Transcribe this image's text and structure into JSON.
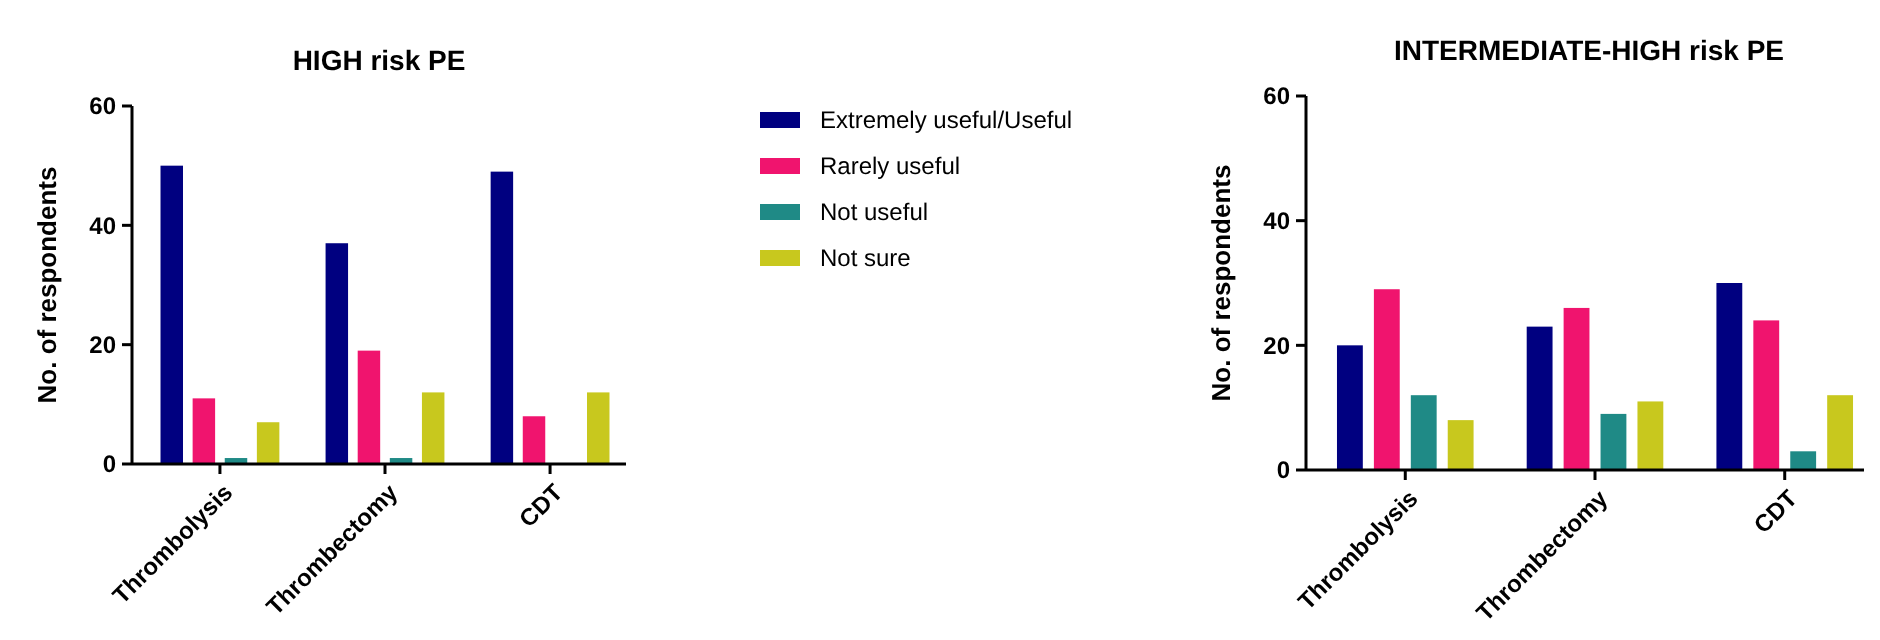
{
  "chart_data": [
    {
      "type": "bar",
      "title": "HIGH risk PE",
      "ylabel": "No. of respondents",
      "categories": [
        "Thrombolysis",
        "Thrombectomy",
        "CDT"
      ],
      "ylim": [
        0,
        60
      ],
      "yticks": [
        0,
        20,
        40,
        60
      ],
      "grid": false,
      "legend": "right",
      "series": [
        {
          "name": "Extremely useful/Useful",
          "color": "#000080",
          "values": [
            50,
            37,
            49
          ]
        },
        {
          "name": "Rarely useful",
          "color": "#f0146e",
          "values": [
            11,
            19,
            8
          ]
        },
        {
          "name": "Not useful",
          "color": "#1f8a86",
          "values": [
            1,
            1,
            0
          ]
        },
        {
          "name": "Not sure",
          "color": "#c8c81e",
          "values": [
            7,
            12,
            12
          ]
        }
      ]
    },
    {
      "type": "bar",
      "title": "INTERMEDIATE-HIGH risk PE",
      "ylabel": "No. of respondents",
      "categories": [
        "Thrombolysis",
        "Thrombectomy",
        "CDT"
      ],
      "ylim": [
        0,
        60
      ],
      "yticks": [
        0,
        20,
        40,
        60
      ],
      "grid": false,
      "legend": false,
      "series": [
        {
          "color": "#000080",
          "values": [
            20,
            23,
            30
          ]
        },
        {
          "color": "#f0146e",
          "values": [
            29,
            26,
            24
          ]
        },
        {
          "color": "#1f8a86",
          "values": [
            12,
            9,
            3
          ]
        },
        {
          "color": "#c8c81e",
          "values": [
            8,
            11,
            12
          ]
        }
      ]
    }
  ]
}
